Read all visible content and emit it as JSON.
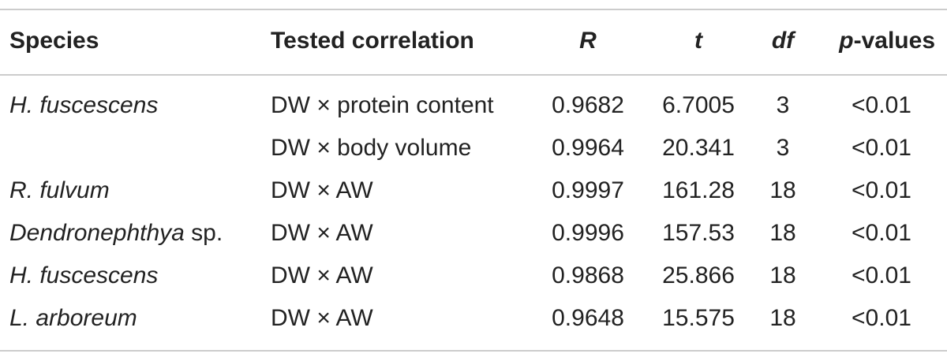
{
  "table": {
    "header": [
      "Species",
      "Tested correlation",
      "R",
      "t",
      "df",
      [
        "p",
        "-values"
      ]
    ],
    "rows": [
      [
        "H. fuscescens",
        "DW × protein content",
        "0.9682",
        "6.7005",
        "3",
        "<0.01"
      ],
      [
        null,
        "DW × body volume",
        "0.9964",
        "20.341",
        "3",
        "<0.01"
      ],
      [
        "R. fulvum",
        "DW × AW",
        "0.9997",
        "161.28",
        "18",
        "<0.01"
      ],
      [
        [
          "Dendronephthya",
          " sp."
        ],
        "DW × AW",
        "0.9996",
        "157.53",
        "18",
        "<0.01"
      ],
      [
        "H. fuscescens",
        "DW × AW",
        "0.9868",
        "25.866",
        "18",
        "<0.01"
      ],
      [
        "L. arboreum",
        "DW × AW",
        "0.9648",
        "15.575",
        "18",
        "<0.01"
      ]
    ]
  }
}
